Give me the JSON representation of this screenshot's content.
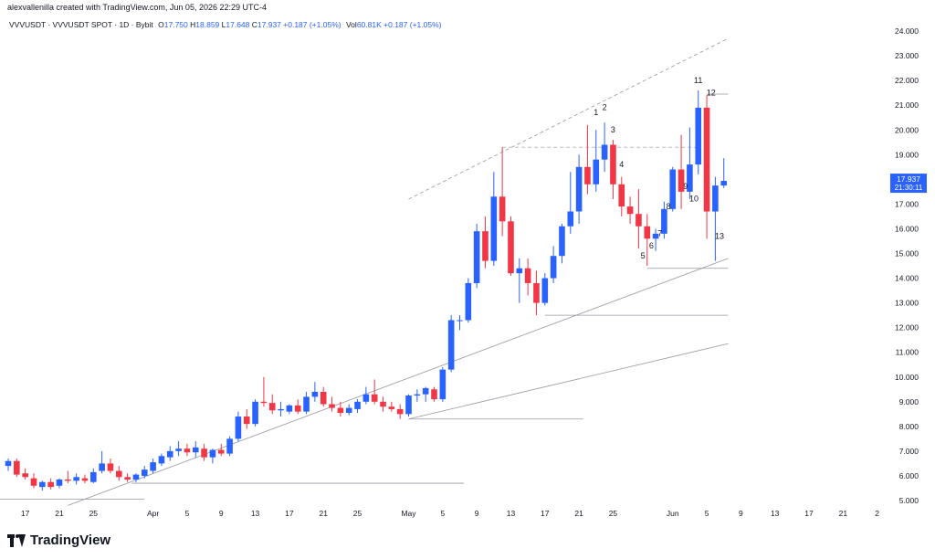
{
  "header": {
    "text": "alexvallenilla created with TradingView.com, Jun 05, 2026 22:29 UTC-4"
  },
  "legend": {
    "symbol": "VVVUSDT · VVVUSDT SPOT · 1D · Bybit",
    "open_label": "O",
    "open": "17.750",
    "high_label": "H",
    "high": "18.859",
    "low_label": "L",
    "low": "17.648",
    "close_label": "C",
    "close": "17.937",
    "change": "+0.187 (+1.05%)",
    "vol_label": "Vol",
    "vol": "60.81K",
    "vol_change": "+0.187 (+1.05%)"
  },
  "price_tag": {
    "price": "17.937",
    "countdown": "21:30:11"
  },
  "brand": {
    "name": "TradingView"
  },
  "colors": {
    "up": "#2962ff",
    "down": "#f23645",
    "tag": "#2962ff",
    "line": "#9598a1"
  },
  "chart_data": {
    "type": "candlestick",
    "timeframe": "1D",
    "ylim": [
      5.0,
      24.0
    ],
    "y_ticks": [
      "5.000",
      "6.000",
      "7.000",
      "8.000",
      "9.000",
      "10.000",
      "11.000",
      "12.000",
      "13.000",
      "14.000",
      "15.000",
      "16.000",
      "17.000",
      "18.000",
      "19.000",
      "20.000",
      "21.000",
      "22.000",
      "23.000",
      "24.000"
    ],
    "x_ticks": [
      {
        "label": "17",
        "day": 2
      },
      {
        "label": "21",
        "day": 6
      },
      {
        "label": "25",
        "day": 10
      },
      {
        "label": "Apr",
        "day": 17
      },
      {
        "label": "5",
        "day": 21
      },
      {
        "label": "9",
        "day": 25
      },
      {
        "label": "13",
        "day": 29
      },
      {
        "label": "17",
        "day": 33
      },
      {
        "label": "21",
        "day": 37
      },
      {
        "label": "25",
        "day": 41
      },
      {
        "label": "May",
        "day": 47
      },
      {
        "label": "5",
        "day": 51
      },
      {
        "label": "9",
        "day": 55
      },
      {
        "label": "13",
        "day": 59
      },
      {
        "label": "17",
        "day": 63
      },
      {
        "label": "21",
        "day": 67
      },
      {
        "label": "25",
        "day": 71
      },
      {
        "label": "Jun",
        "day": 78
      },
      {
        "label": "5",
        "day": 82
      },
      {
        "label": "9",
        "day": 86
      },
      {
        "label": "13",
        "day": 90
      },
      {
        "label": "17",
        "day": 94
      },
      {
        "label": "21",
        "day": 98
      },
      {
        "label": "2",
        "day": 102
      }
    ],
    "candles": [
      {
        "d": 0,
        "o": 6.4,
        "h": 6.7,
        "l": 6.2,
        "c": 6.6
      },
      {
        "d": 1,
        "o": 6.6,
        "h": 6.7,
        "l": 5.95,
        "c": 6.05
      },
      {
        "d": 2,
        "o": 6.1,
        "h": 6.3,
        "l": 5.85,
        "c": 5.95
      },
      {
        "d": 3,
        "o": 5.9,
        "h": 6.1,
        "l": 5.5,
        "c": 5.6
      },
      {
        "d": 4,
        "o": 5.55,
        "h": 5.8,
        "l": 5.4,
        "c": 5.75
      },
      {
        "d": 5,
        "o": 5.75,
        "h": 5.9,
        "l": 5.45,
        "c": 5.55
      },
      {
        "d": 6,
        "o": 5.6,
        "h": 5.9,
        "l": 5.5,
        "c": 5.85
      },
      {
        "d": 7,
        "o": 5.85,
        "h": 6.2,
        "l": 5.7,
        "c": 5.8
      },
      {
        "d": 8,
        "o": 5.8,
        "h": 6.1,
        "l": 5.65,
        "c": 5.95
      },
      {
        "d": 9,
        "o": 5.9,
        "h": 6.05,
        "l": 5.7,
        "c": 5.8
      },
      {
        "d": 10,
        "o": 5.75,
        "h": 6.3,
        "l": 5.7,
        "c": 6.15
      },
      {
        "d": 11,
        "o": 6.2,
        "h": 7.0,
        "l": 6.1,
        "c": 6.5
      },
      {
        "d": 12,
        "o": 6.5,
        "h": 6.7,
        "l": 6.1,
        "c": 6.2
      },
      {
        "d": 13,
        "o": 6.2,
        "h": 6.4,
        "l": 5.8,
        "c": 5.95
      },
      {
        "d": 14,
        "o": 5.95,
        "h": 6.1,
        "l": 5.75,
        "c": 5.85
      },
      {
        "d": 15,
        "o": 5.85,
        "h": 6.1,
        "l": 5.75,
        "c": 6.05
      },
      {
        "d": 16,
        "o": 6.0,
        "h": 6.4,
        "l": 5.9,
        "c": 6.25
      },
      {
        "d": 17,
        "o": 6.2,
        "h": 6.7,
        "l": 6.1,
        "c": 6.55
      },
      {
        "d": 18,
        "o": 6.5,
        "h": 6.9,
        "l": 6.4,
        "c": 6.8
      },
      {
        "d": 19,
        "o": 6.75,
        "h": 7.2,
        "l": 6.6,
        "c": 7.0
      },
      {
        "d": 20,
        "o": 7.0,
        "h": 7.4,
        "l": 6.8,
        "c": 7.1
      },
      {
        "d": 21,
        "o": 7.1,
        "h": 7.3,
        "l": 6.8,
        "c": 6.95
      },
      {
        "d": 22,
        "o": 6.95,
        "h": 7.4,
        "l": 6.75,
        "c": 7.15
      },
      {
        "d": 23,
        "o": 7.1,
        "h": 7.3,
        "l": 6.6,
        "c": 6.75
      },
      {
        "d": 24,
        "o": 6.75,
        "h": 7.1,
        "l": 6.5,
        "c": 7.05
      },
      {
        "d": 25,
        "o": 7.05,
        "h": 7.3,
        "l": 6.8,
        "c": 6.9
      },
      {
        "d": 26,
        "o": 6.9,
        "h": 7.6,
        "l": 6.8,
        "c": 7.5
      },
      {
        "d": 27,
        "o": 7.5,
        "h": 8.6,
        "l": 7.4,
        "c": 8.4
      },
      {
        "d": 28,
        "o": 8.4,
        "h": 8.7,
        "l": 7.9,
        "c": 8.1
      },
      {
        "d": 29,
        "o": 8.1,
        "h": 9.1,
        "l": 8.0,
        "c": 9.0
      },
      {
        "d": 30,
        "o": 9.0,
        "h": 10.0,
        "l": 8.8,
        "c": 8.95
      },
      {
        "d": 31,
        "o": 8.95,
        "h": 9.3,
        "l": 8.5,
        "c": 8.65
      },
      {
        "d": 32,
        "o": 8.65,
        "h": 9.0,
        "l": 8.4,
        "c": 8.7
      },
      {
        "d": 33,
        "o": 8.6,
        "h": 8.9,
        "l": 8.5,
        "c": 8.85
      },
      {
        "d": 34,
        "o": 8.85,
        "h": 9.1,
        "l": 8.5,
        "c": 8.6
      },
      {
        "d": 35,
        "o": 8.6,
        "h": 9.4,
        "l": 8.5,
        "c": 9.2
      },
      {
        "d": 36,
        "o": 9.2,
        "h": 9.8,
        "l": 9.0,
        "c": 9.4
      },
      {
        "d": 37,
        "o": 9.4,
        "h": 9.6,
        "l": 8.8,
        "c": 8.9
      },
      {
        "d": 38,
        "o": 8.9,
        "h": 9.2,
        "l": 8.6,
        "c": 8.75
      },
      {
        "d": 39,
        "o": 8.75,
        "h": 9.0,
        "l": 8.4,
        "c": 8.55
      },
      {
        "d": 40,
        "o": 8.55,
        "h": 8.9,
        "l": 8.45,
        "c": 8.75
      },
      {
        "d": 41,
        "o": 8.7,
        "h": 9.1,
        "l": 8.55,
        "c": 9.0
      },
      {
        "d": 42,
        "o": 9.0,
        "h": 9.6,
        "l": 8.9,
        "c": 9.3
      },
      {
        "d": 43,
        "o": 9.3,
        "h": 9.9,
        "l": 8.9,
        "c": 9.0
      },
      {
        "d": 44,
        "o": 9.0,
        "h": 9.2,
        "l": 8.6,
        "c": 8.8
      },
      {
        "d": 45,
        "o": 8.8,
        "h": 9.0,
        "l": 8.6,
        "c": 8.7
      },
      {
        "d": 46,
        "o": 8.7,
        "h": 8.9,
        "l": 8.3,
        "c": 8.5
      },
      {
        "d": 47,
        "o": 8.5,
        "h": 9.3,
        "l": 8.4,
        "c": 9.25
      },
      {
        "d": 48,
        "o": 9.25,
        "h": 9.5,
        "l": 9.0,
        "c": 9.3
      },
      {
        "d": 49,
        "o": 9.3,
        "h": 9.6,
        "l": 9.0,
        "c": 9.55
      },
      {
        "d": 50,
        "o": 9.5,
        "h": 9.6,
        "l": 9.0,
        "c": 9.1
      },
      {
        "d": 51,
        "o": 9.1,
        "h": 10.4,
        "l": 9.0,
        "c": 10.3
      },
      {
        "d": 52,
        "o": 10.3,
        "h": 12.5,
        "l": 10.2,
        "c": 12.3
      },
      {
        "d": 53,
        "o": 12.3,
        "h": 12.5,
        "l": 11.9,
        "c": 12.3
      },
      {
        "d": 54,
        "o": 12.3,
        "h": 14.0,
        "l": 12.2,
        "c": 13.8
      },
      {
        "d": 55,
        "o": 13.8,
        "h": 16.2,
        "l": 13.6,
        "c": 15.9
      },
      {
        "d": 56,
        "o": 15.9,
        "h": 16.5,
        "l": 14.4,
        "c": 14.7
      },
      {
        "d": 57,
        "o": 14.7,
        "h": 18.3,
        "l": 14.5,
        "c": 17.3
      },
      {
        "d": 58,
        "o": 17.3,
        "h": 19.3,
        "l": 15.7,
        "c": 16.3
      },
      {
        "d": 59,
        "o": 16.3,
        "h": 16.5,
        "l": 14.1,
        "c": 14.2
      },
      {
        "d": 60,
        "o": 14.2,
        "h": 14.8,
        "l": 13.0,
        "c": 14.4
      },
      {
        "d": 61,
        "o": 14.4,
        "h": 14.8,
        "l": 13.3,
        "c": 13.8
      },
      {
        "d": 62,
        "o": 13.8,
        "h": 14.3,
        "l": 12.5,
        "c": 13.0
      },
      {
        "d": 63,
        "o": 13.0,
        "h": 14.2,
        "l": 12.9,
        "c": 14.0
      },
      {
        "d": 64,
        "o": 14.0,
        "h": 15.3,
        "l": 13.8,
        "c": 14.9
      },
      {
        "d": 65,
        "o": 14.9,
        "h": 16.2,
        "l": 14.6,
        "c": 16.1
      },
      {
        "d": 66,
        "o": 16.1,
        "h": 18.3,
        "l": 15.8,
        "c": 16.7
      },
      {
        "d": 67,
        "o": 16.7,
        "h": 19.0,
        "l": 16.2,
        "c": 18.5
      },
      {
        "d": 68,
        "o": 18.5,
        "h": 20.2,
        "l": 17.4,
        "c": 17.8
      },
      {
        "d": 69,
        "o": 17.8,
        "h": 20.0,
        "l": 17.5,
        "c": 18.8
      },
      {
        "d": 70,
        "o": 18.8,
        "h": 20.3,
        "l": 18.3,
        "c": 19.4
      },
      {
        "d": 71,
        "o": 19.4,
        "h": 19.6,
        "l": 17.2,
        "c": 17.8
      },
      {
        "d": 72,
        "o": 17.8,
        "h": 18.1,
        "l": 16.5,
        "c": 16.9
      },
      {
        "d": 73,
        "o": 16.9,
        "h": 17.3,
        "l": 16.2,
        "c": 16.6
      },
      {
        "d": 74,
        "o": 16.6,
        "h": 17.6,
        "l": 15.2,
        "c": 16.1
      },
      {
        "d": 75,
        "o": 16.1,
        "h": 16.6,
        "l": 14.5,
        "c": 15.6
      },
      {
        "d": 76,
        "o": 15.6,
        "h": 16.0,
        "l": 15.1,
        "c": 15.8
      },
      {
        "d": 77,
        "o": 15.8,
        "h": 17.1,
        "l": 15.6,
        "c": 16.8
      },
      {
        "d": 78,
        "o": 16.8,
        "h": 18.5,
        "l": 16.7,
        "c": 18.4
      },
      {
        "d": 79,
        "o": 18.4,
        "h": 19.8,
        "l": 16.8,
        "c": 17.5
      },
      {
        "d": 80,
        "o": 17.5,
        "h": 20.1,
        "l": 17.2,
        "c": 18.6
      },
      {
        "d": 81,
        "o": 18.6,
        "h": 21.6,
        "l": 18.2,
        "c": 20.9
      },
      {
        "d": 82,
        "o": 20.9,
        "h": 21.4,
        "l": 15.6,
        "c": 16.7
      },
      {
        "d": 83,
        "o": 16.7,
        "h": 18.1,
        "l": 14.7,
        "c": 17.75
      },
      {
        "d": 84,
        "o": 17.75,
        "h": 18.859,
        "l": 17.648,
        "c": 17.937
      }
    ],
    "count_labels": [
      {
        "text": "1",
        "day": 69,
        "y": 20.6
      },
      {
        "text": "2",
        "day": 70,
        "y": 20.8
      },
      {
        "text": "3",
        "day": 71,
        "y": 19.9
      },
      {
        "text": "4",
        "day": 72,
        "y": 18.5
      },
      {
        "text": "5",
        "day": 74.5,
        "y": 14.8
      },
      {
        "text": "6",
        "day": 75.5,
        "y": 15.2
      },
      {
        "text": "7",
        "day": 76.5,
        "y": 15.7
      },
      {
        "text": "8",
        "day": 77.5,
        "y": 16.8
      },
      {
        "text": "9",
        "day": 79.5,
        "y": 17.6
      },
      {
        "text": "10",
        "day": 80.5,
        "y": 17.1
      },
      {
        "text": "11",
        "day": 81,
        "y": 21.9
      },
      {
        "text": "12",
        "day": 82.5,
        "y": 21.4
      },
      {
        "text": "13",
        "day": 83.5,
        "y": 15.6
      }
    ]
  }
}
